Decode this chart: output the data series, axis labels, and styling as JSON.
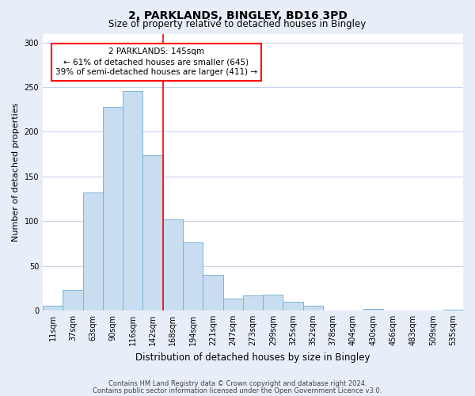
{
  "title": "2, PARKLANDS, BINGLEY, BD16 3PD",
  "subtitle": "Size of property relative to detached houses in Bingley",
  "xlabel": "Distribution of detached houses by size in Bingley",
  "ylabel": "Number of detached properties",
  "bar_labels": [
    "11sqm",
    "37sqm",
    "63sqm",
    "90sqm",
    "116sqm",
    "142sqm",
    "168sqm",
    "194sqm",
    "221sqm",
    "247sqm",
    "273sqm",
    "299sqm",
    "325sqm",
    "352sqm",
    "378sqm",
    "404sqm",
    "430sqm",
    "456sqm",
    "483sqm",
    "509sqm",
    "535sqm"
  ],
  "bar_values": [
    5,
    23,
    132,
    228,
    246,
    174,
    102,
    76,
    40,
    13,
    17,
    18,
    10,
    5,
    0,
    0,
    2,
    0,
    0,
    0,
    1
  ],
  "bar_color": "#c8ddf0",
  "bar_edge_color": "#7ab4d8",
  "vline_x": 5.5,
  "vline_color": "red",
  "annotation_text": "2 PARKLANDS: 145sqm\n← 61% of detached houses are smaller (645)\n39% of semi-detached houses are larger (411) →",
  "annotation_box_color": "white",
  "annotation_box_edge": "red",
  "ylim": [
    0,
    310
  ],
  "yticks": [
    0,
    50,
    100,
    150,
    200,
    250,
    300
  ],
  "footer1": "Contains HM Land Registry data © Crown copyright and database right 2024.",
  "footer2": "Contains public sector information licensed under the Open Government Licence v3.0.",
  "background_color": "#e8eef8",
  "plot_background": "white",
  "grid_color": "#c8d4e8",
  "title_fontsize": 10,
  "subtitle_fontsize": 8.5,
  "ylabel_fontsize": 8,
  "xlabel_fontsize": 8.5,
  "tick_fontsize": 7,
  "footer_fontsize": 6,
  "annot_fontsize": 7.5
}
